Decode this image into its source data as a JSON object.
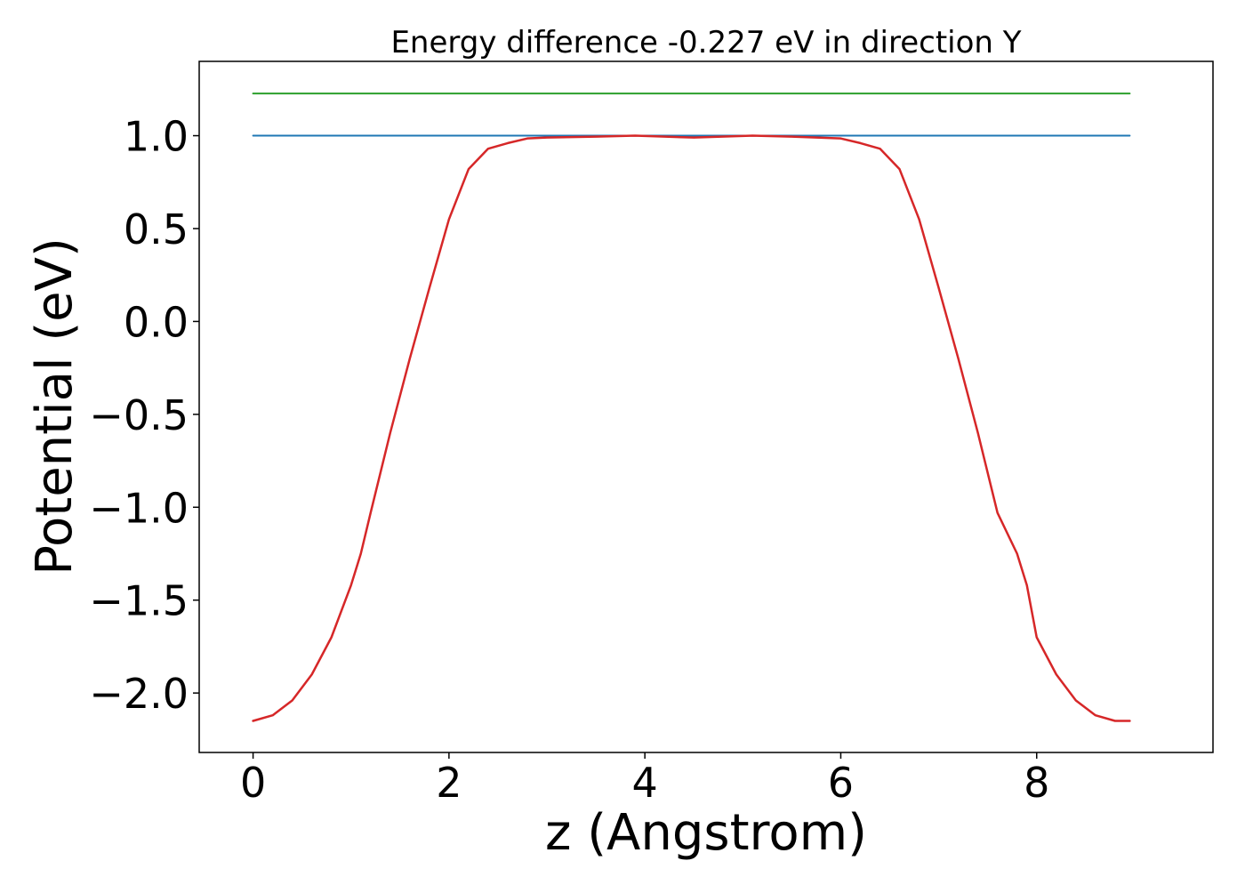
{
  "chart_data": {
    "type": "line",
    "title": "Energy difference -0.227 eV in direction Y",
    "xlabel": "z (Angstrom)",
    "ylabel": "Potential (eV)",
    "xlim": [
      -0.55,
      9.8
    ],
    "ylim": [
      -2.32,
      1.4
    ],
    "xticks": [
      0,
      2,
      4,
      6,
      8
    ],
    "xtick_labels": [
      "0",
      "2",
      "4",
      "6",
      "8"
    ],
    "yticks": [
      -2.0,
      -1.5,
      -1.0,
      -0.5,
      0.0,
      0.5,
      1.0
    ],
    "ytick_labels": [
      "−2.0",
      "−1.5",
      "−1.0",
      "−0.5",
      "0.0",
      "0.5",
      "1.0"
    ],
    "grid": false,
    "legend": "none",
    "series": [
      {
        "color": "#d62728",
        "x": [
          0.0,
          0.2,
          0.4,
          0.6,
          0.8,
          1.0,
          1.1,
          1.2,
          1.4,
          1.6,
          1.8,
          2.0,
          2.2,
          2.4,
          2.6,
          2.8,
          3.0,
          3.5,
          3.9,
          4.5,
          5.1,
          5.5,
          6.0,
          6.2,
          6.4,
          6.6,
          6.8,
          7.0,
          7.2,
          7.4,
          7.6,
          7.8,
          7.9,
          8.0,
          8.2,
          8.4,
          8.6,
          8.8,
          8.95
        ],
        "values": [
          -2.15,
          -2.12,
          -2.04,
          -1.9,
          -1.7,
          -1.42,
          -1.25,
          -1.03,
          -0.6,
          -0.2,
          0.18,
          0.55,
          0.82,
          0.93,
          0.96,
          0.985,
          0.99,
          0.995,
          1.0,
          0.99,
          1.0,
          0.995,
          0.985,
          0.96,
          0.93,
          0.82,
          0.55,
          0.18,
          -0.2,
          -0.6,
          -1.03,
          -1.25,
          -1.42,
          -1.7,
          -1.9,
          -2.04,
          -2.12,
          -2.15,
          -2.15
        ]
      },
      {
        "color": "#1f77b4",
        "x": [
          0.0,
          8.95
        ],
        "values": [
          1.0,
          1.0
        ]
      },
      {
        "color": "#2ca02c",
        "x": [
          0.0,
          8.95
        ],
        "values": [
          1.227,
          1.227
        ]
      }
    ]
  }
}
